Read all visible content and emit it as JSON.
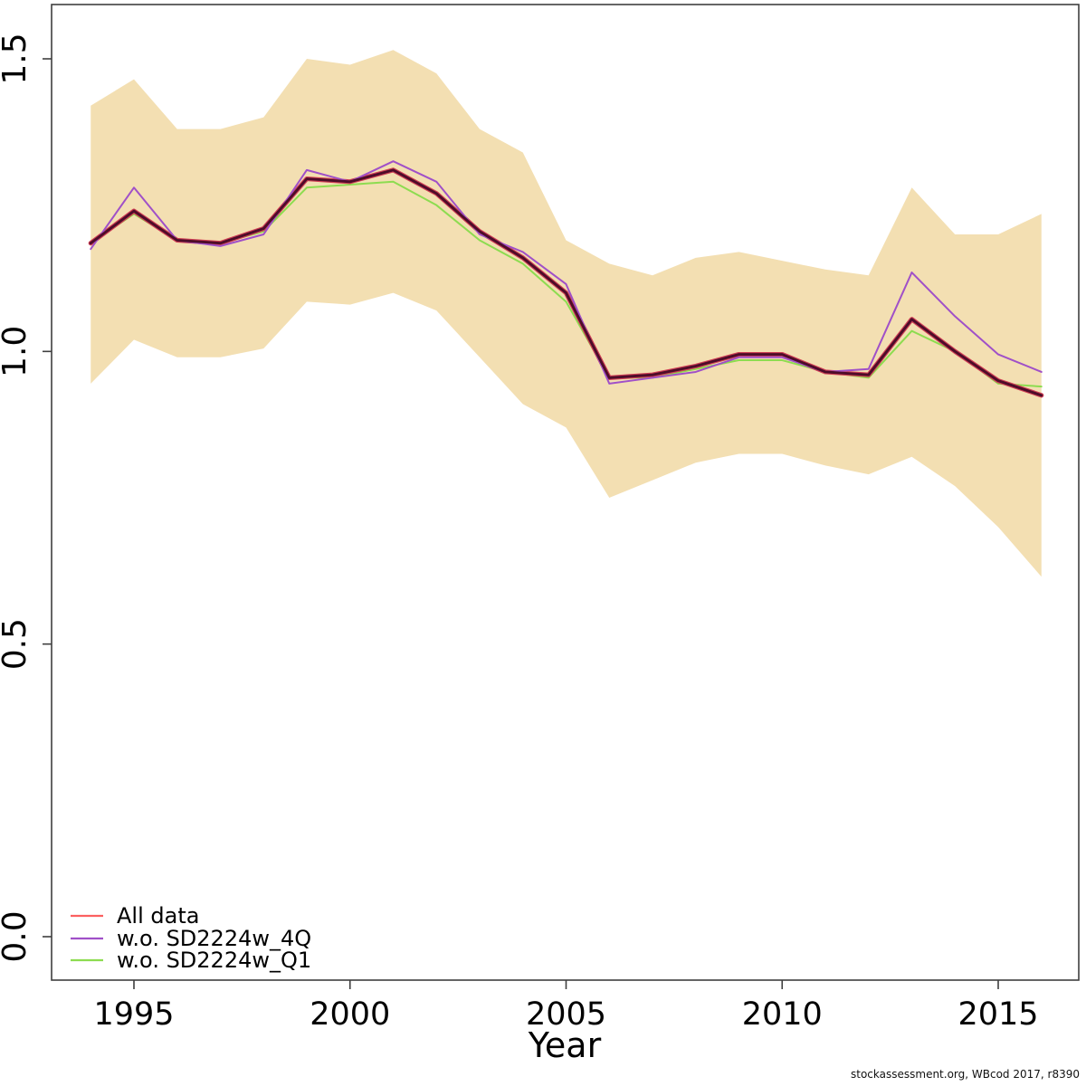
{
  "footer": "stockassessment.org, WBcod 2017, r8390",
  "x_axis": {
    "label": "Year",
    "tick_labels": [
      "1995",
      "2000",
      "2005",
      "2010",
      "2015"
    ],
    "tick_years": [
      1995,
      2000,
      2005,
      2010,
      2015
    ]
  },
  "y_axis": {
    "tick_labels": [
      "0.0",
      "0.5",
      "1.0",
      "1.5"
    ],
    "tick_values": [
      0.0,
      0.5,
      1.0,
      1.5
    ]
  },
  "legend": {
    "items": [
      {
        "label": "All data",
        "color": "#fb6060"
      },
      {
        "label": "w.o. SD2224w_4Q",
        "color": "#a050c8"
      },
      {
        "label": "w.o. SD2224w_Q1",
        "color": "#8ddc50"
      }
    ]
  },
  "colors": {
    "band_fill": "#f3dfb2",
    "all_data_core": "#4e0c29",
    "all_data_edge": "#cf3f55",
    "wo_4q_line": "#a050c8",
    "wo_q1_line": "#8ddc50"
  },
  "chart_data": {
    "type": "line",
    "title": "",
    "xlabel": "Year",
    "ylabel": "",
    "xlim": [
      1993.8,
      2016.8
    ],
    "ylim": [
      -0.07,
      1.59
    ],
    "grid": false,
    "legend_position": "bottom-left",
    "x": [
      1994,
      1995,
      1996,
      1997,
      1998,
      1999,
      2000,
      2001,
      2002,
      2003,
      2004,
      2005,
      2006,
      2007,
      2008,
      2009,
      2010,
      2011,
      2012,
      2013,
      2014,
      2015,
      2016
    ],
    "series": [
      {
        "name": "All data",
        "values": [
          1.185,
          1.24,
          1.19,
          1.185,
          1.21,
          1.295,
          1.29,
          1.31,
          1.27,
          1.205,
          1.16,
          1.1,
          0.955,
          0.96,
          0.975,
          0.995,
          0.995,
          0.965,
          0.96,
          1.055,
          1.0,
          0.95,
          0.925
        ]
      },
      {
        "name": "w.o. SD2224w_4Q",
        "values": [
          1.175,
          1.28,
          1.19,
          1.18,
          1.2,
          1.31,
          1.29,
          1.325,
          1.29,
          1.2,
          1.17,
          1.115,
          0.945,
          0.955,
          0.965,
          0.99,
          0.99,
          0.965,
          0.97,
          1.135,
          1.06,
          0.995,
          0.965
        ]
      },
      {
        "name": "w.o. SD2224w_Q1",
        "values": [
          1.185,
          1.235,
          1.19,
          1.185,
          1.205,
          1.28,
          1.285,
          1.29,
          1.25,
          1.19,
          1.15,
          1.085,
          0.955,
          0.955,
          0.97,
          0.985,
          0.985,
          0.965,
          0.955,
          1.035,
          1.0,
          0.945,
          0.94
        ]
      }
    ],
    "confidence_band": {
      "series": "All data",
      "upper": [
        1.42,
        1.465,
        1.38,
        1.38,
        1.4,
        1.5,
        1.49,
        1.515,
        1.475,
        1.38,
        1.34,
        1.19,
        1.15,
        1.13,
        1.16,
        1.17,
        1.155,
        1.14,
        1.13,
        1.28,
        1.2,
        1.2,
        1.235
      ],
      "lower": [
        0.945,
        1.02,
        0.99,
        0.99,
        1.005,
        1.085,
        1.08,
        1.1,
        1.07,
        0.99,
        0.91,
        0.87,
        0.75,
        0.78,
        0.81,
        0.825,
        0.825,
        0.805,
        0.79,
        0.82,
        0.77,
        0.7,
        0.615
      ]
    }
  }
}
